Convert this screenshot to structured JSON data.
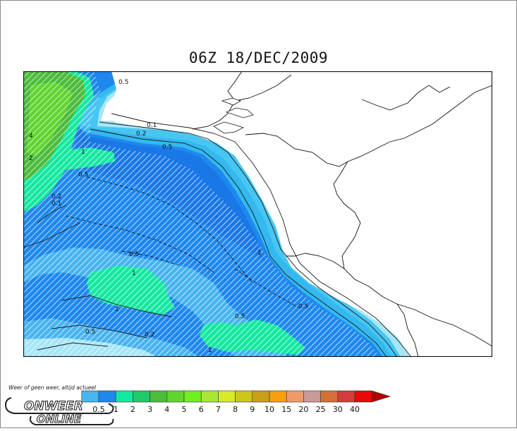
{
  "title": "06Z 18/DEC/2009",
  "contour_labels": [
    "0.5",
    "0.1",
    "0.2",
    "0.5",
    "1",
    "0.5",
    "4",
    "2",
    "1",
    "0.5",
    "0.2",
    "0.1",
    "0.5",
    "1",
    "1",
    "0.5",
    "0.5",
    "0.2",
    "1"
  ],
  "legend": {
    "entries": [
      {
        "label": "0.5",
        "color": "#1e88ee"
      },
      {
        "label": "1",
        "color": "#14e8a0"
      },
      {
        "label": "2",
        "color": "#22c96a"
      },
      {
        "label": "3",
        "color": "#4cbc3c"
      },
      {
        "label": "4",
        "color": "#62d432"
      },
      {
        "label": "5",
        "color": "#70f020"
      },
      {
        "label": "6",
        "color": "#a8e632"
      },
      {
        "label": "7",
        "color": "#d6ea28"
      },
      {
        "label": "8",
        "color": "#ccc51c"
      },
      {
        "label": "9",
        "color": "#c8a018"
      },
      {
        "label": "10",
        "color": "#f4a010"
      },
      {
        "label": "15",
        "color": "#f09a6c"
      },
      {
        "label": "20",
        "color": "#c89a9a"
      },
      {
        "label": "25",
        "color": "#d2703a"
      },
      {
        "label": "30",
        "color": "#d23c3c"
      },
      {
        "label": "40",
        "color": "#e60a0a"
      }
    ],
    "first_color": "#48b4f0"
  },
  "logo": {
    "tagline": "Weer of geen weer, altijd actueel",
    "line1": "ONWEER",
    "line2": "ONLINE"
  }
}
